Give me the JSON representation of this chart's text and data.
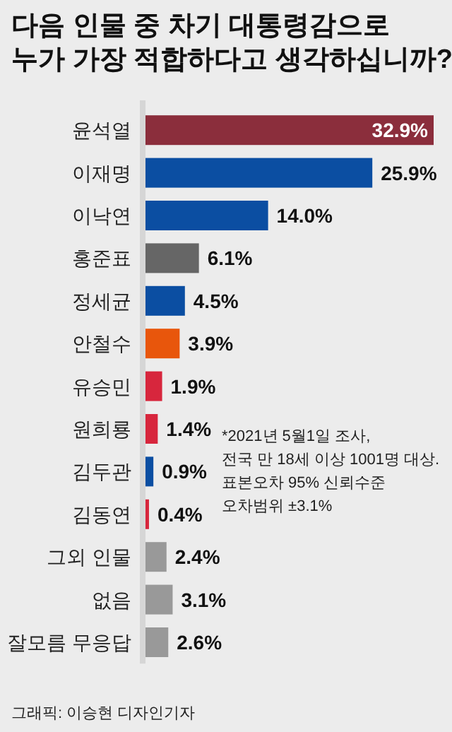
{
  "chart_data": {
    "type": "bar",
    "orientation": "horizontal",
    "title": "다음 인물 중 차기 대통령감으로\n누가 가장 적합하다고 생각하십니까?",
    "categories": [
      "윤석열",
      "이재명",
      "이낙연",
      "홍준표",
      "정세균",
      "안철수",
      "유승민",
      "원희룡",
      "김두관",
      "김동연",
      "그외 인물",
      "없음",
      "잘모름 무응답"
    ],
    "values": [
      32.9,
      25.9,
      14.0,
      6.1,
      4.5,
      3.9,
      1.9,
      1.4,
      0.9,
      0.4,
      2.4,
      3.1,
      2.6
    ],
    "value_labels": [
      "32.9%",
      "25.9%",
      "14.0%",
      "6.1%",
      "4.5%",
      "3.9%",
      "1.9%",
      "1.4%",
      "0.9%",
      "0.4%",
      "2.4%",
      "3.1%",
      "2.6%"
    ],
    "colors": [
      "#8b2e3c",
      "#0b4ea2",
      "#0b4ea2",
      "#666666",
      "#0b4ea2",
      "#e8560c",
      "#d7263d",
      "#d7263d",
      "#0b4ea2",
      "#d7263d",
      "#999999",
      "#999999",
      "#999999"
    ],
    "annotations": [
      "*2021년 5월1일 조사,\n전국 만 18세 이상 1001명 대상.\n표본오차 95% 신뢰수준\n오차범위 ±3.1%",
      "그래픽: 이승현 디자인기자"
    ]
  }
}
